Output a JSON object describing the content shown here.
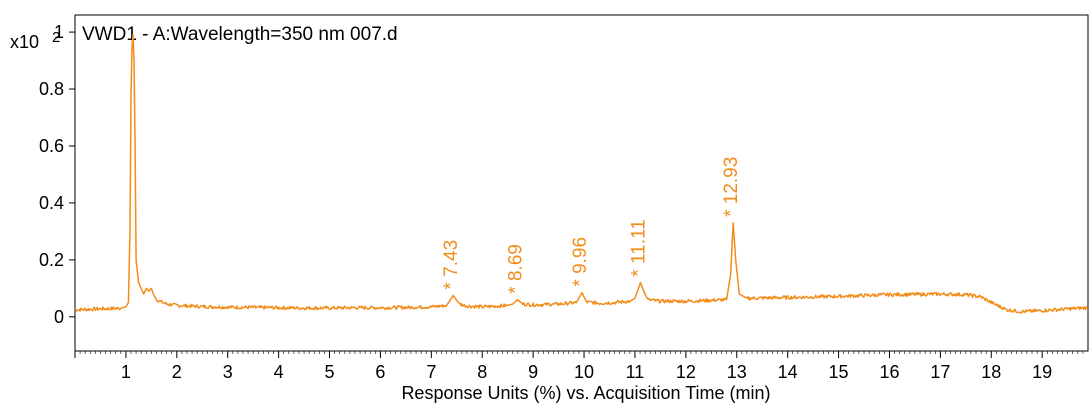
{
  "chart_data": {
    "type": "line",
    "title": "VWD1 - A:Wavelength=350 nm 007.d",
    "y_multiplier_label": "x10",
    "y_multiplier_exponent": "2",
    "xlabel": "Response Units (%) vs. Acquisition Time (min)",
    "ylabel": "",
    "xlim": [
      0,
      19.9
    ],
    "ylim": [
      -0.12,
      1.06
    ],
    "x_ticks": [
      "1",
      "2",
      "3",
      "4",
      "5",
      "6",
      "7",
      "8",
      "9",
      "10",
      "11",
      "12",
      "13",
      "14",
      "15",
      "16",
      "17",
      "18",
      "19"
    ],
    "y_ticks": [
      "0",
      "0.2",
      "0.4",
      "0.6",
      "0.8",
      "1"
    ],
    "y_tick_values": [
      0,
      0.2,
      0.4,
      0.6,
      0.8,
      1
    ],
    "grid": false,
    "line_color": "#f28c1b",
    "series": [
      {
        "name": "",
        "x": [
          0.0,
          0.5,
          0.9,
          1.0,
          1.05,
          1.08,
          1.1,
          1.12,
          1.14,
          1.16,
          1.18,
          1.2,
          1.25,
          1.3,
          1.35,
          1.4,
          1.45,
          1.5,
          1.55,
          1.6,
          1.8,
          2.0,
          2.5,
          3.0,
          3.5,
          4.0,
          4.5,
          5.0,
          5.5,
          6.0,
          6.5,
          7.0,
          7.3,
          7.43,
          7.55,
          7.7,
          8.0,
          8.5,
          8.6,
          8.69,
          8.8,
          9.0,
          9.5,
          9.85,
          9.96,
          10.05,
          10.3,
          10.6,
          10.9,
          11.0,
          11.07,
          11.11,
          11.15,
          11.25,
          11.5,
          12.0,
          12.5,
          12.8,
          12.88,
          12.93,
          12.98,
          13.05,
          13.2,
          14.0,
          15.0,
          16.0,
          17.0,
          17.5,
          17.8,
          18.0,
          18.3,
          18.6,
          19.0,
          19.5,
          19.9
        ],
        "y": [
          0.025,
          0.028,
          0.03,
          0.035,
          0.05,
          0.3,
          0.78,
          0.95,
          0.99,
          0.9,
          0.6,
          0.2,
          0.12,
          0.1,
          0.08,
          0.1,
          0.09,
          0.1,
          0.075,
          0.06,
          0.045,
          0.04,
          0.036,
          0.034,
          0.033,
          0.032,
          0.031,
          0.031,
          0.032,
          0.032,
          0.033,
          0.035,
          0.04,
          0.075,
          0.045,
          0.038,
          0.035,
          0.04,
          0.045,
          0.06,
          0.045,
          0.042,
          0.045,
          0.05,
          0.085,
          0.052,
          0.048,
          0.05,
          0.055,
          0.065,
          0.1,
          0.12,
          0.1,
          0.06,
          0.055,
          0.055,
          0.058,
          0.06,
          0.15,
          0.33,
          0.2,
          0.08,
          0.065,
          0.068,
          0.072,
          0.078,
          0.08,
          0.078,
          0.07,
          0.05,
          0.025,
          0.018,
          0.022,
          0.028,
          0.032
        ]
      }
    ],
    "annotations": [
      {
        "x": 7.43,
        "y": 0.075,
        "label": "* 7.43"
      },
      {
        "x": 8.69,
        "y": 0.06,
        "label": "* 8.69"
      },
      {
        "x": 9.96,
        "y": 0.085,
        "label": "* 9.96"
      },
      {
        "x": 11.11,
        "y": 0.12,
        "label": "* 11.11"
      },
      {
        "x": 12.93,
        "y": 0.33,
        "label": "* 12.93"
      }
    ]
  }
}
